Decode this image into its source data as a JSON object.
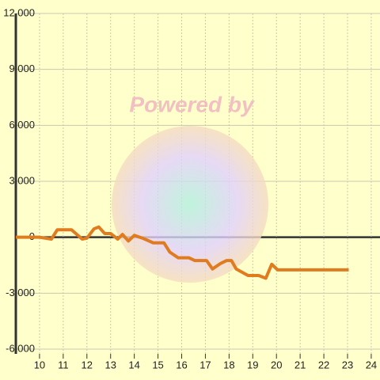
{
  "chart_data": {
    "type": "line",
    "watermark": "Powered by",
    "x": [
      9,
      10,
      10.5,
      10.75,
      11.35,
      11.8,
      12.0,
      12.3,
      12.5,
      12.75,
      13.0,
      13.3,
      13.5,
      13.75,
      14.0,
      14.35,
      14.8,
      15.25,
      15.5,
      15.85,
      16.3,
      16.55,
      17.05,
      17.3,
      17.65,
      17.9,
      18.1,
      18.3,
      18.8,
      19.25,
      19.55,
      19.8,
      20.05,
      23.05
    ],
    "series": [
      {
        "color": "#e07b20",
        "values": [
          0,
          0,
          -100,
          400,
          400,
          -100,
          -50,
          450,
          550,
          200,
          200,
          -100,
          150,
          -200,
          100,
          -50,
          -300,
          -300,
          -800,
          -1100,
          -1100,
          -1250,
          -1250,
          -1700,
          -1400,
          -1250,
          -1250,
          -1700,
          -2050,
          -2050,
          -2200,
          -1450,
          -1750,
          -1750
        ]
      }
    ],
    "xlim": [
      9,
      24.37
    ],
    "xticks": [
      10,
      11,
      12,
      13,
      14,
      15,
      16,
      17,
      18,
      19,
      20,
      21,
      22,
      23,
      24
    ],
    "ylim": [
      -6000,
      12000
    ],
    "yticks": [
      {
        "value": -6000,
        "label": "-6,000"
      },
      {
        "value": -3000,
        "label": "-3,000"
      },
      0,
      {
        "value": 3000,
        "label": "3,000"
      },
      {
        "value": 6000,
        "label": "6,000"
      },
      {
        "value": 9000,
        "label": "9,000"
      },
      {
        "value": 12000,
        "label": "12,000"
      }
    ],
    "grid": true
  }
}
